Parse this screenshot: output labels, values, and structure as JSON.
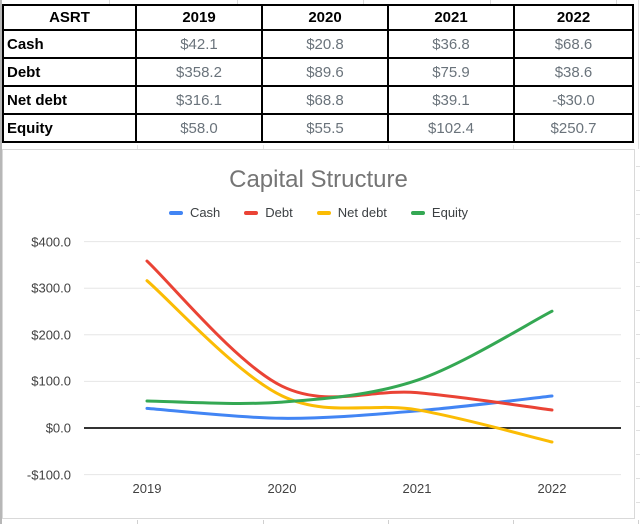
{
  "table": {
    "header": [
      "ASRT",
      "2019",
      "2020",
      "2021",
      "2022"
    ],
    "rows": [
      {
        "label": "Cash",
        "values": [
          "$42.1",
          "$20.8",
          "$36.8",
          "$68.6"
        ]
      },
      {
        "label": "Debt",
        "values": [
          "$358.2",
          "$89.6",
          "$75.9",
          "$38.6"
        ]
      },
      {
        "label": "Net debt",
        "values": [
          "$316.1",
          "$68.8",
          "$39.1",
          "-$30.0"
        ]
      },
      {
        "label": "Equity",
        "values": [
          "$58.0",
          "$55.5",
          "$102.4",
          "$250.7"
        ]
      }
    ]
  },
  "chart_data": {
    "type": "line",
    "title": "Capital Structure",
    "categories": [
      "2019",
      "2020",
      "2021",
      "2022"
    ],
    "series": [
      {
        "name": "Cash",
        "color": "#4285F4",
        "values": [
          42.1,
          20.8,
          36.8,
          68.6
        ]
      },
      {
        "name": "Debt",
        "color": "#EA4335",
        "values": [
          358.2,
          89.6,
          75.9,
          38.6
        ]
      },
      {
        "name": "Net debt",
        "color": "#FBBC04",
        "values": [
          316.1,
          68.8,
          39.1,
          -30.0
        ]
      },
      {
        "name": "Equity",
        "color": "#34A853",
        "values": [
          58.0,
          55.5,
          102.4,
          250.7
        ]
      }
    ],
    "y_ticks": [
      {
        "value": 400,
        "label": "$400.0"
      },
      {
        "value": 300,
        "label": "$300.0"
      },
      {
        "value": 200,
        "label": "$200.0"
      },
      {
        "value": 100,
        "label": "$100.0"
      },
      {
        "value": 0,
        "label": "$0.0"
      },
      {
        "value": -100,
        "label": "-$100.0"
      }
    ],
    "ylim": [
      -100,
      400
    ],
    "smooth": true,
    "grid": true,
    "legend_position": "top",
    "zero_axis_color": "#333333",
    "gridline_color": "#e6e6e6"
  },
  "ui_colors": {
    "table_border": "#000000",
    "value_text": "#6a737b",
    "chart_title_text": "#757575",
    "axis_text": "#424242"
  }
}
